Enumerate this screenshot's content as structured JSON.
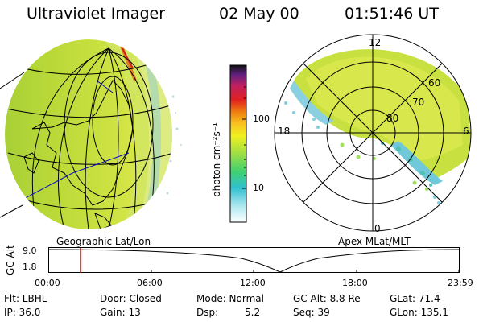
{
  "header": {
    "instrument": "Ultraviolet Imager",
    "date": "02 May 00",
    "time": "01:51:46 UT"
  },
  "colorbar": {
    "unit_label": "photon cm⁻²s⁻¹",
    "ticks": [
      "100",
      "10"
    ],
    "scale": "log"
  },
  "left_map": {
    "caption": "Geographic Lat/Lon"
  },
  "right_map": {
    "caption": "Apex MLat/MLT",
    "lat_labels": [
      "60",
      "70",
      "80"
    ],
    "mlt_labels": [
      "12",
      "18",
      "6",
      "0"
    ]
  },
  "timeline": {
    "ylabel": "GC Alt",
    "y_ticks": [
      "9.0",
      "1.8"
    ],
    "x_ticks": [
      "00:00",
      "06:00",
      "12:00",
      "18:00",
      "23:59"
    ],
    "marker_time": "01:51:46",
    "marker_color": "#e00000"
  },
  "status": {
    "flt": "Flt: LBHL",
    "ip": "IP: 36.0",
    "door": "Door: Closed",
    "gain": "Gain: 13",
    "mode": "Mode: Normal",
    "dsp_label": "Dsp:",
    "dsp_value": "5.2",
    "gcalt": "GC Alt: 8.8 Re",
    "seq": "Seq: 39",
    "glat": "GLat: 71.4",
    "glon": "GLon: 135.1"
  }
}
